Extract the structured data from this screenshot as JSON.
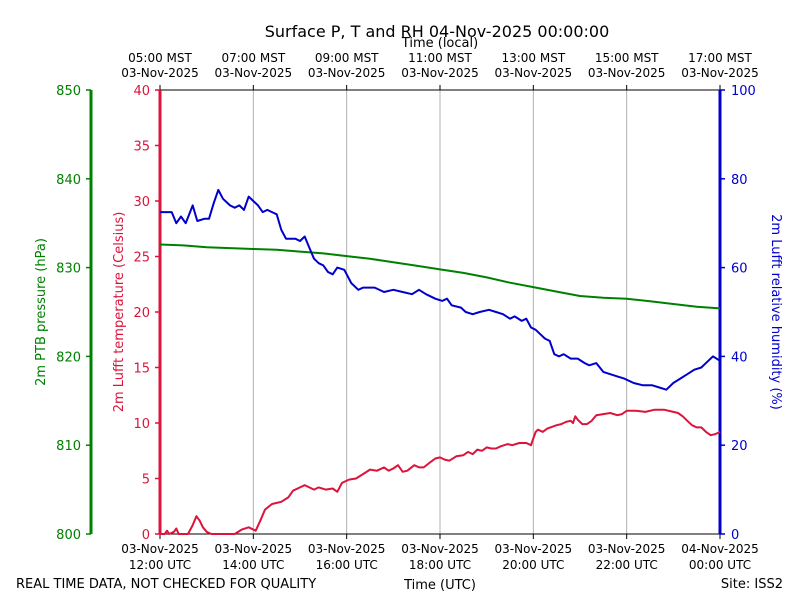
{
  "chart_data": {
    "type": "line",
    "title": "Surface P, T and RH 04-Nov-2025 00:00:00",
    "top_axis_label": "Time (local)",
    "top_ticks": [
      {
        "x": 11,
        "time": "05:00 MST",
        "date": "03-Nov-2025"
      },
      {
        "x": 13,
        "time": "07:00 MST",
        "date": "03-Nov-2025"
      },
      {
        "x": 15,
        "time": "09:00 MST",
        "date": "03-Nov-2025"
      },
      {
        "x": 17,
        "time": "11:00 MST",
        "date": "03-Nov-2025"
      },
      {
        "x": 19,
        "time": "13:00 MST",
        "date": "03-Nov-2025"
      },
      {
        "x": 21,
        "time": "15:00 MST",
        "date": "03-Nov-2025"
      },
      {
        "x": 23,
        "time": "17:00 MST",
        "date": "03-Nov-2025"
      }
    ],
    "xlabel": "Time (UTC)",
    "x_range": [
      11,
      23
    ],
    "x_ticks": [
      {
        "x": 11,
        "date": "03-Nov-2025",
        "time": "12:00 UTC"
      },
      {
        "x": 13,
        "date": "03-Nov-2025",
        "time": "14:00 UTC"
      },
      {
        "x": 15,
        "date": "03-Nov-2025",
        "time": "16:00 UTC"
      },
      {
        "x": 17,
        "date": "03-Nov-2025",
        "time": "18:00 UTC"
      },
      {
        "x": 19,
        "date": "03-Nov-2025",
        "time": "20:00 UTC"
      },
      {
        "x": 21,
        "date": "03-Nov-2025",
        "time": "22:00 UTC"
      },
      {
        "x": 23,
        "date": "04-Nov-2025",
        "time": "00:00 UTC"
      }
    ],
    "grid": "vertical",
    "axes": {
      "pressure": {
        "label": "2m PTB pressure (hPa)",
        "range": [
          800,
          850
        ],
        "ticks": [
          800,
          810,
          820,
          830,
          840,
          850
        ],
        "color": "#008000"
      },
      "temperature": {
        "label": "2m Lufft temperature (Celsius)",
        "range": [
          0,
          40
        ],
        "ticks": [
          0,
          5,
          10,
          15,
          20,
          25,
          30,
          35,
          40
        ],
        "color": "#dc143c"
      },
      "humidity": {
        "label": "2m Lufft relative humidity (%)",
        "range": [
          0,
          100
        ],
        "ticks": [
          0,
          20,
          40,
          60,
          80,
          100
        ],
        "color": "#0000cd"
      }
    },
    "series": [
      {
        "name": "Pressure",
        "axis": "pressure",
        "color": "#008000",
        "points": [
          [
            11,
            832.6
          ],
          [
            11.5,
            832.5
          ],
          [
            12,
            832.3
          ],
          [
            12.5,
            832.2
          ],
          [
            13,
            832.1
          ],
          [
            13.5,
            832.0
          ],
          [
            14,
            831.8
          ],
          [
            14.5,
            831.6
          ],
          [
            15,
            831.3
          ],
          [
            15.5,
            831.0
          ],
          [
            16,
            830.6
          ],
          [
            16.5,
            830.2
          ],
          [
            17,
            829.8
          ],
          [
            17.5,
            829.4
          ],
          [
            18,
            828.9
          ],
          [
            18.5,
            828.3
          ],
          [
            19,
            827.8
          ],
          [
            19.5,
            827.3
          ],
          [
            20,
            826.8
          ],
          [
            20.5,
            826.6
          ],
          [
            21,
            826.5
          ],
          [
            21.5,
            826.2
          ],
          [
            22,
            825.9
          ],
          [
            22.5,
            825.6
          ],
          [
            23,
            825.4
          ]
        ]
      },
      {
        "name": "Temperature",
        "axis": "temperature",
        "color": "#dc143c",
        "points": [
          [
            11,
            0
          ],
          [
            11.1,
            0
          ],
          [
            11.15,
            0.3
          ],
          [
            11.2,
            0
          ],
          [
            11.3,
            0.2
          ],
          [
            11.35,
            0.5
          ],
          [
            11.4,
            0
          ],
          [
            11.6,
            0
          ],
          [
            11.7,
            0.8
          ],
          [
            11.78,
            1.6
          ],
          [
            11.85,
            1.2
          ],
          [
            11.92,
            0.6
          ],
          [
            12,
            0.2
          ],
          [
            12.1,
            0
          ],
          [
            12.6,
            0
          ],
          [
            12.75,
            0.4
          ],
          [
            12.9,
            0.6
          ],
          [
            13.05,
            0.3
          ],
          [
            13.15,
            1.2
          ],
          [
            13.25,
            2.2
          ],
          [
            13.4,
            2.7
          ],
          [
            13.6,
            2.9
          ],
          [
            13.75,
            3.3
          ],
          [
            13.85,
            3.9
          ],
          [
            14,
            4.2
          ],
          [
            14.1,
            4.4
          ],
          [
            14.2,
            4.2
          ],
          [
            14.3,
            4.0
          ],
          [
            14.4,
            4.2
          ],
          [
            14.55,
            4.0
          ],
          [
            14.7,
            4.1
          ],
          [
            14.8,
            3.8
          ],
          [
            14.9,
            4.6
          ],
          [
            15.05,
            4.9
          ],
          [
            15.2,
            5.0
          ],
          [
            15.35,
            5.4
          ],
          [
            15.5,
            5.8
          ],
          [
            15.65,
            5.7
          ],
          [
            15.8,
            6.0
          ],
          [
            15.9,
            5.7
          ],
          [
            16,
            5.9
          ],
          [
            16.1,
            6.2
          ],
          [
            16.2,
            5.6
          ],
          [
            16.3,
            5.7
          ],
          [
            16.45,
            6.2
          ],
          [
            16.55,
            6.0
          ],
          [
            16.65,
            6.0
          ],
          [
            16.8,
            6.5
          ],
          [
            16.9,
            6.8
          ],
          [
            17,
            6.9
          ],
          [
            17.1,
            6.7
          ],
          [
            17.2,
            6.6
          ],
          [
            17.35,
            7.0
          ],
          [
            17.5,
            7.1
          ],
          [
            17.6,
            7.4
          ],
          [
            17.7,
            7.2
          ],
          [
            17.8,
            7.6
          ],
          [
            17.9,
            7.5
          ],
          [
            18,
            7.8
          ],
          [
            18.1,
            7.7
          ],
          [
            18.2,
            7.7
          ],
          [
            18.3,
            7.9
          ],
          [
            18.45,
            8.1
          ],
          [
            18.55,
            8.0
          ],
          [
            18.7,
            8.2
          ],
          [
            18.85,
            8.2
          ],
          [
            18.95,
            8.0
          ],
          [
            19,
            8.6
          ],
          [
            19.05,
            9.2
          ],
          [
            19.1,
            9.4
          ],
          [
            19.2,
            9.2
          ],
          [
            19.3,
            9.5
          ],
          [
            19.5,
            9.8
          ],
          [
            19.6,
            9.9
          ],
          [
            19.7,
            10.1
          ],
          [
            19.8,
            10.2
          ],
          [
            19.85,
            10.0
          ],
          [
            19.9,
            10.6
          ],
          [
            19.95,
            10.3
          ],
          [
            20.05,
            9.9
          ],
          [
            20.15,
            9.9
          ],
          [
            20.25,
            10.2
          ],
          [
            20.35,
            10.7
          ],
          [
            20.5,
            10.8
          ],
          [
            20.65,
            10.9
          ],
          [
            20.8,
            10.7
          ],
          [
            20.9,
            10.8
          ],
          [
            21,
            11.1
          ],
          [
            21.2,
            11.1
          ],
          [
            21.4,
            11.0
          ],
          [
            21.6,
            11.2
          ],
          [
            21.8,
            11.2
          ],
          [
            22,
            11.0
          ],
          [
            22.1,
            10.9
          ],
          [
            22.2,
            10.6
          ],
          [
            22.3,
            10.2
          ],
          [
            22.4,
            9.8
          ],
          [
            22.5,
            9.6
          ],
          [
            22.6,
            9.6
          ],
          [
            22.7,
            9.2
          ],
          [
            22.8,
            8.9
          ],
          [
            22.9,
            9.0
          ],
          [
            23,
            9.2
          ]
        ]
      },
      {
        "name": "Relative humidity",
        "axis": "humidity",
        "color": "#0000cd",
        "points": [
          [
            11,
            72.5
          ],
          [
            11.25,
            72.5
          ],
          [
            11.35,
            70.0
          ],
          [
            11.45,
            71.5
          ],
          [
            11.55,
            70.0
          ],
          [
            11.7,
            74.0
          ],
          [
            11.8,
            70.5
          ],
          [
            11.95,
            71.0
          ],
          [
            12.05,
            71.0
          ],
          [
            12.15,
            74.5
          ],
          [
            12.25,
            77.5
          ],
          [
            12.35,
            75.5
          ],
          [
            12.5,
            74.0
          ],
          [
            12.6,
            73.5
          ],
          [
            12.7,
            74.0
          ],
          [
            12.8,
            73.0
          ],
          [
            12.9,
            76.0
          ],
          [
            13.0,
            75.0
          ],
          [
            13.1,
            74.0
          ],
          [
            13.2,
            72.5
          ],
          [
            13.3,
            73.0
          ],
          [
            13.4,
            72.5
          ],
          [
            13.5,
            72.0
          ],
          [
            13.6,
            68.5
          ],
          [
            13.7,
            66.5
          ],
          [
            13.8,
            66.5
          ],
          [
            13.9,
            66.5
          ],
          [
            14.0,
            66.0
          ],
          [
            14.1,
            67.0
          ],
          [
            14.2,
            64.5
          ],
          [
            14.3,
            62.0
          ],
          [
            14.4,
            61.0
          ],
          [
            14.5,
            60.5
          ],
          [
            14.6,
            59.0
          ],
          [
            14.7,
            58.5
          ],
          [
            14.8,
            60.0
          ],
          [
            14.95,
            59.5
          ],
          [
            15.1,
            56.5
          ],
          [
            15.25,
            55.0
          ],
          [
            15.35,
            55.5
          ],
          [
            15.6,
            55.5
          ],
          [
            15.8,
            54.5
          ],
          [
            16,
            55.0
          ],
          [
            16.2,
            54.5
          ],
          [
            16.4,
            54.0
          ],
          [
            16.55,
            55.0
          ],
          [
            16.7,
            54.0
          ],
          [
            16.9,
            53.0
          ],
          [
            17.05,
            52.5
          ],
          [
            17.15,
            53.0
          ],
          [
            17.25,
            51.5
          ],
          [
            17.45,
            51.0
          ],
          [
            17.55,
            50.0
          ],
          [
            17.7,
            49.5
          ],
          [
            17.85,
            50.0
          ],
          [
            18.05,
            50.5
          ],
          [
            18.2,
            50.0
          ],
          [
            18.35,
            49.5
          ],
          [
            18.5,
            48.5
          ],
          [
            18.6,
            49.0
          ],
          [
            18.75,
            48.0
          ],
          [
            18.85,
            48.5
          ],
          [
            18.95,
            46.5
          ],
          [
            19.05,
            46.0
          ],
          [
            19.15,
            45.0
          ],
          [
            19.25,
            44.0
          ],
          [
            19.35,
            43.5
          ],
          [
            19.45,
            40.5
          ],
          [
            19.55,
            40.0
          ],
          [
            19.65,
            40.5
          ],
          [
            19.8,
            39.5
          ],
          [
            19.95,
            39.5
          ],
          [
            20.1,
            38.5
          ],
          [
            20.2,
            38.0
          ],
          [
            20.35,
            38.5
          ],
          [
            20.5,
            36.5
          ],
          [
            20.65,
            36.0
          ],
          [
            20.8,
            35.5
          ],
          [
            20.95,
            35.0
          ],
          [
            21.15,
            34.0
          ],
          [
            21.35,
            33.5
          ],
          [
            21.55,
            33.5
          ],
          [
            21.7,
            33.0
          ],
          [
            21.85,
            32.5
          ],
          [
            22.0,
            34.0
          ],
          [
            22.15,
            35.0
          ],
          [
            22.3,
            36.0
          ],
          [
            22.45,
            37.0
          ],
          [
            22.6,
            37.5
          ],
          [
            22.75,
            39.0
          ],
          [
            22.85,
            40.0
          ],
          [
            23,
            39.0
          ]
        ]
      }
    ],
    "footer_left": "REAL TIME DATA, NOT CHECKED FOR QUALITY",
    "footer_right": "Site: ISS2"
  }
}
